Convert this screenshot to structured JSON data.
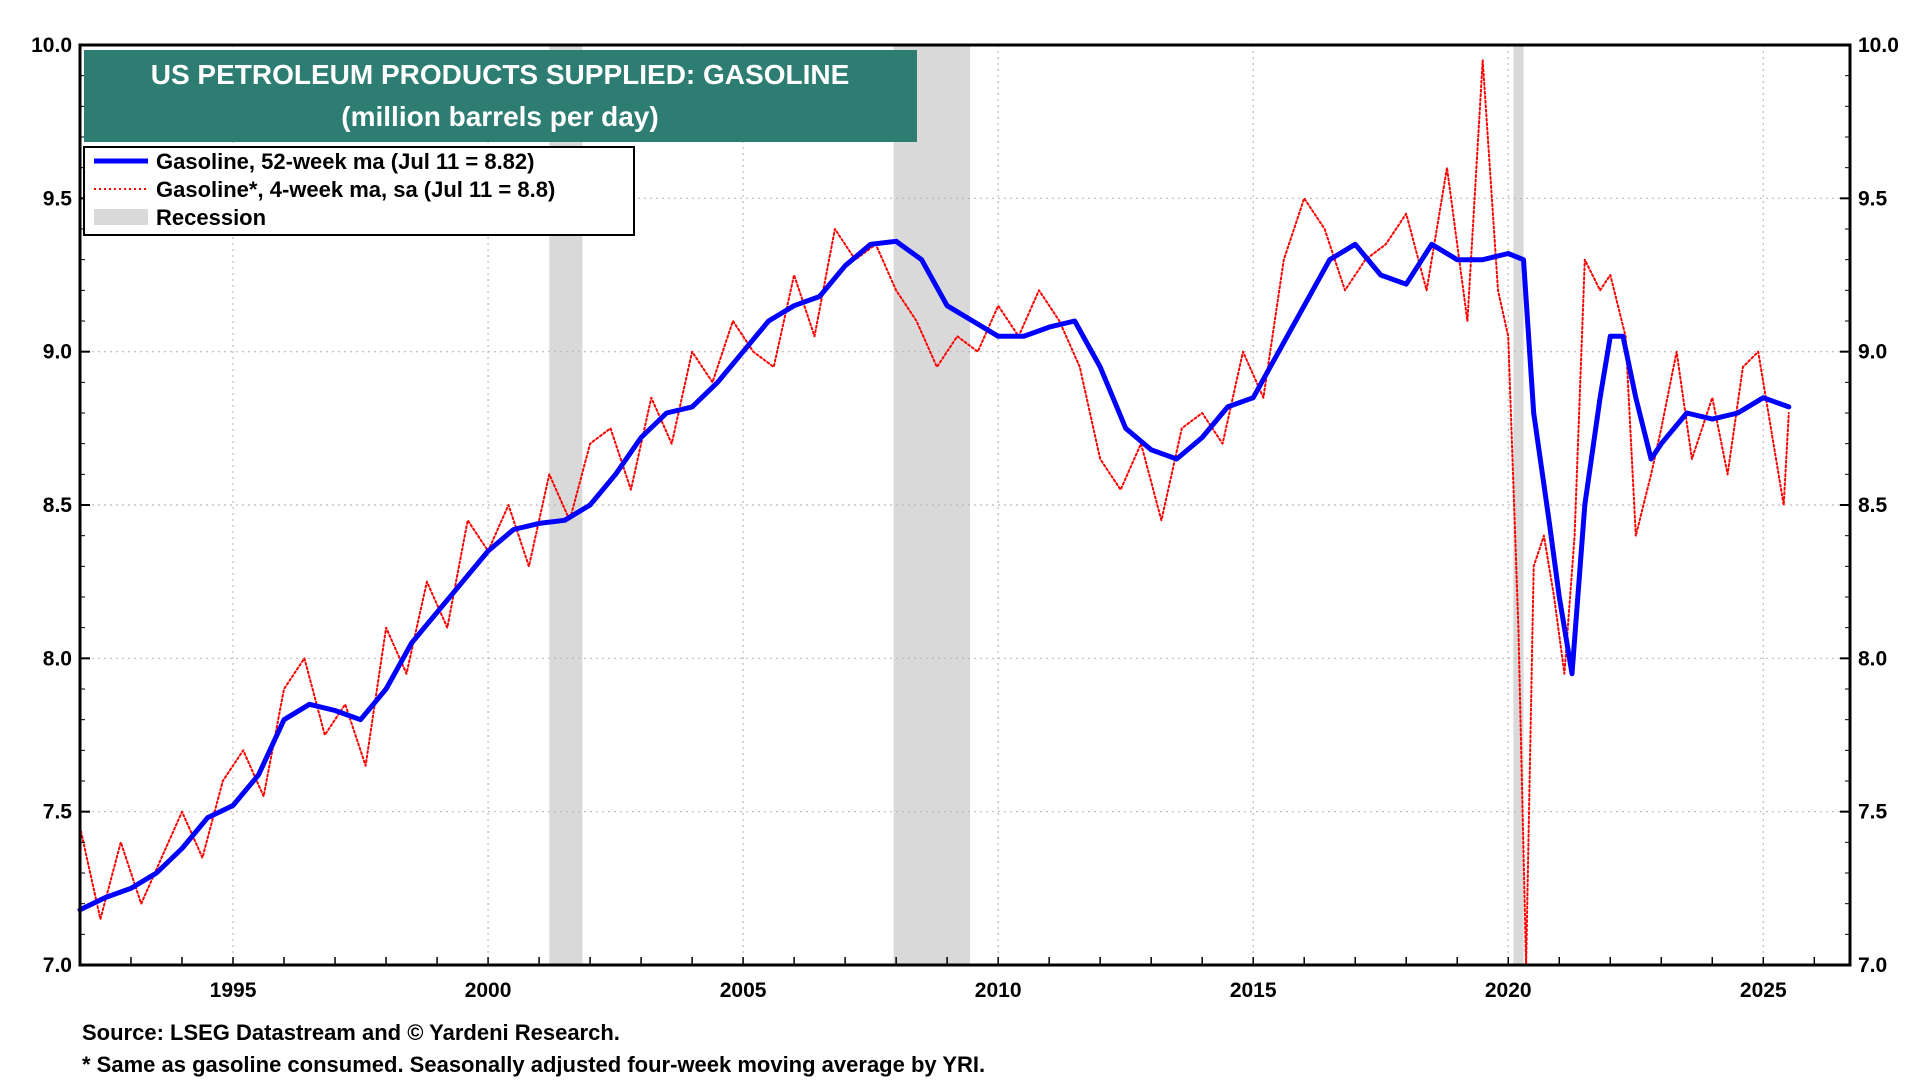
{
  "chart_data": {
    "type": "line",
    "title": "US PETROLEUM PRODUCTS SUPPLIED: GASOLINE",
    "subtitle": "(million barrels per day)",
    "y_ticks": [
      "7.0",
      "7.5",
      "8.0",
      "8.5",
      "9.0",
      "9.5",
      "10.0"
    ],
    "ylim": [
      7.0,
      10.0
    ],
    "x_ticks": [
      "1995",
      "2000",
      "2005",
      "2010",
      "2015",
      "2020",
      "2025"
    ],
    "xlim": [
      1992.0,
      2026.7
    ],
    "grid": true,
    "legend_position": "top-left",
    "legend": [
      {
        "label": "Gasoline, 52-week ma (Jul 11 = 8.82)",
        "style": "solid",
        "color": "#0000ff"
      },
      {
        "label": "Gasoline*, 4-week ma, sa (Jul 11 = 8.8)",
        "style": "dotted",
        "color": "#ff0000"
      },
      {
        "label": "Recession",
        "style": "band",
        "color": "#d9d9d9"
      }
    ],
    "recessions": [
      [
        2001.2,
        2001.85
      ],
      [
        2007.95,
        2009.45
      ],
      [
        2020.1,
        2020.3
      ]
    ],
    "series": [
      {
        "name": "Gasoline, 52-week ma",
        "color": "#0000ff",
        "x": [
          1992.0,
          1992.5,
          1993.0,
          1993.5,
          1994.0,
          1994.5,
          1995.0,
          1995.5,
          1996.0,
          1996.5,
          1997.0,
          1997.5,
          1998.0,
          1998.5,
          1999.0,
          1999.5,
          2000.0,
          2000.5,
          2001.0,
          2001.5,
          2002.0,
          2002.5,
          2003.0,
          2003.5,
          2004.0,
          2004.5,
          2005.0,
          2005.5,
          2006.0,
          2006.5,
          2007.0,
          2007.5,
          2008.0,
          2008.5,
          2009.0,
          2009.5,
          2010.0,
          2010.5,
          2011.0,
          2011.5,
          2012.0,
          2012.5,
          2013.0,
          2013.5,
          2014.0,
          2014.5,
          2015.0,
          2015.5,
          2016.0,
          2016.5,
          2017.0,
          2017.5,
          2018.0,
          2018.5,
          2019.0,
          2019.5,
          2020.0,
          2020.3,
          2020.5,
          2020.8,
          2021.0,
          2021.25,
          2021.5,
          2021.8,
          2022.0,
          2022.25,
          2022.5,
          2022.8,
          2023.0,
          2023.5,
          2024.0,
          2024.5,
          2025.0,
          2025.5
        ],
        "values": [
          7.18,
          7.22,
          7.25,
          7.3,
          7.38,
          7.48,
          7.52,
          7.62,
          7.8,
          7.85,
          7.83,
          7.8,
          7.9,
          8.05,
          8.15,
          8.25,
          8.35,
          8.42,
          8.44,
          8.45,
          8.5,
          8.6,
          8.72,
          8.8,
          8.82,
          8.9,
          9.0,
          9.1,
          9.15,
          9.18,
          9.28,
          9.35,
          9.36,
          9.3,
          9.15,
          9.1,
          9.05,
          9.05,
          9.08,
          9.1,
          8.95,
          8.75,
          8.68,
          8.65,
          8.72,
          8.82,
          8.85,
          9.0,
          9.15,
          9.3,
          9.35,
          9.25,
          9.22,
          9.35,
          9.3,
          9.3,
          9.32,
          9.3,
          8.8,
          8.45,
          8.2,
          7.95,
          8.5,
          8.85,
          9.05,
          9.05,
          8.85,
          8.65,
          8.7,
          8.8,
          8.78,
          8.8,
          8.85,
          8.82
        ]
      },
      {
        "name": "Gasoline*, 4-week ma, sa",
        "color": "#ff0000",
        "x": [
          1992.0,
          1992.4,
          1992.8,
          1993.2,
          1993.6,
          1994.0,
          1994.4,
          1994.8,
          1995.2,
          1995.6,
          1996.0,
          1996.4,
          1996.8,
          1997.2,
          1997.6,
          1998.0,
          1998.4,
          1998.8,
          1999.2,
          1999.6,
          2000.0,
          2000.4,
          2000.8,
          2001.2,
          2001.6,
          2002.0,
          2002.4,
          2002.8,
          2003.2,
          2003.6,
          2004.0,
          2004.4,
          2004.8,
          2005.2,
          2005.6,
          2006.0,
          2006.4,
          2006.8,
          2007.2,
          2007.6,
          2008.0,
          2008.4,
          2008.8,
          2009.2,
          2009.6,
          2010.0,
          2010.4,
          2010.8,
          2011.2,
          2011.6,
          2012.0,
          2012.4,
          2012.8,
          2013.2,
          2013.6,
          2014.0,
          2014.4,
          2014.8,
          2015.2,
          2015.6,
          2016.0,
          2016.4,
          2016.8,
          2017.2,
          2017.6,
          2018.0,
          2018.4,
          2018.8,
          2019.2,
          2019.5,
          2019.8,
          2020.0,
          2020.2,
          2020.35,
          2020.5,
          2020.7,
          2020.9,
          2021.1,
          2021.3,
          2021.5,
          2021.8,
          2022.0,
          2022.3,
          2022.5,
          2022.8,
          2023.0,
          2023.3,
          2023.6,
          2024.0,
          2024.3,
          2024.6,
          2024.9,
          2025.2,
          2025.4,
          2025.5
        ],
        "values": [
          7.45,
          7.15,
          7.4,
          7.2,
          7.35,
          7.5,
          7.35,
          7.6,
          7.7,
          7.55,
          7.9,
          8.0,
          7.75,
          7.85,
          7.65,
          8.1,
          7.95,
          8.25,
          8.1,
          8.45,
          8.35,
          8.5,
          8.3,
          8.6,
          8.45,
          8.7,
          8.75,
          8.55,
          8.85,
          8.7,
          9.0,
          8.9,
          9.1,
          9.0,
          8.95,
          9.25,
          9.05,
          9.4,
          9.3,
          9.35,
          9.2,
          9.1,
          8.95,
          9.05,
          9.0,
          9.15,
          9.05,
          9.2,
          9.1,
          8.95,
          8.65,
          8.55,
          8.7,
          8.45,
          8.75,
          8.8,
          8.7,
          9.0,
          8.85,
          9.3,
          9.5,
          9.4,
          9.2,
          9.3,
          9.35,
          9.45,
          9.2,
          9.6,
          9.1,
          9.95,
          9.2,
          9.05,
          8.1,
          7.0,
          8.3,
          8.4,
          8.2,
          7.95,
          8.4,
          9.3,
          9.2,
          9.25,
          9.05,
          8.4,
          8.6,
          8.75,
          9.0,
          8.65,
          8.85,
          8.6,
          8.95,
          9.0,
          8.7,
          8.5,
          8.8
        ]
      }
    ]
  },
  "footer": {
    "source": "Source: LSEG Datastream and © Yardeni Research.",
    "note": "* Same as gasoline consumed. Seasonally adjusted four-week moving average by YRI."
  },
  "colors": {
    "title_background": "#2e7d72",
    "recession": "#d9d9d9",
    "grid": "#bbbbbb"
  }
}
